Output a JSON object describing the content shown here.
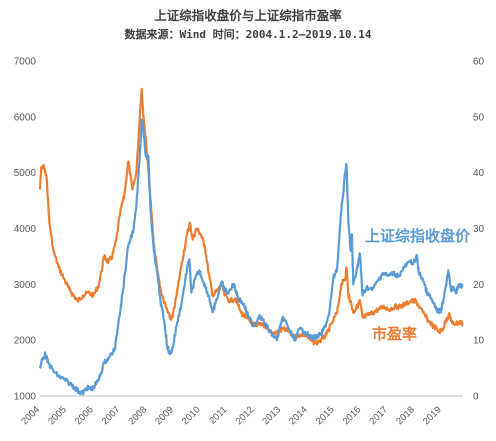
{
  "chart_data": {
    "type": "line",
    "title": "上证综指收盘价与上证综指市盈率",
    "subtitle": "数据来源：Wind 时间：2004.1.2—2019.10.14",
    "x_range": [
      2004,
      2019.8
    ],
    "x_ticks": [
      "2004",
      "2005",
      "2006",
      "2007",
      "2008",
      "2009",
      "2010",
      "2011",
      "2012",
      "2013",
      "2014",
      "2015",
      "2016",
      "2017",
      "2018",
      "2019"
    ],
    "y_left_range": [
      1000,
      7000
    ],
    "y_left_ticks": [
      "1000",
      "2000",
      "3000",
      "4000",
      "5000",
      "6000",
      "7000"
    ],
    "y_right_range": [
      0,
      60
    ],
    "y_right_ticks": [
      "0",
      "10",
      "20",
      "30",
      "40",
      "50",
      "60"
    ],
    "grid": false,
    "series": [
      {
        "name": "上证综指收盘价",
        "axis": "left",
        "color": "#5b9bd5",
        "points": [
          [
            2004.0,
            1500
          ],
          [
            2004.08,
            1650
          ],
          [
            2004.2,
            1750
          ],
          [
            2004.3,
            1600
          ],
          [
            2004.5,
            1450
          ],
          [
            2004.7,
            1350
          ],
          [
            2004.9,
            1300
          ],
          [
            2005.1,
            1230
          ],
          [
            2005.3,
            1150
          ],
          [
            2005.45,
            1080
          ],
          [
            2005.6,
            1050
          ],
          [
            2005.75,
            1150
          ],
          [
            2005.9,
            1120
          ],
          [
            2006.0,
            1150
          ],
          [
            2006.2,
            1300
          ],
          [
            2006.4,
            1600
          ],
          [
            2006.6,
            1700
          ],
          [
            2006.8,
            1850
          ],
          [
            2006.95,
            2400
          ],
          [
            2007.1,
            2900
          ],
          [
            2007.3,
            3700
          ],
          [
            2007.5,
            4000
          ],
          [
            2007.6,
            4400
          ],
          [
            2007.75,
            5500
          ],
          [
            2007.8,
            5950
          ],
          [
            2007.85,
            5800
          ],
          [
            2007.95,
            5300
          ],
          [
            2008.05,
            5300
          ],
          [
            2008.12,
            4400
          ],
          [
            2008.25,
            3600
          ],
          [
            2008.35,
            3300
          ],
          [
            2008.5,
            2700
          ],
          [
            2008.65,
            2300
          ],
          [
            2008.75,
            1900
          ],
          [
            2008.85,
            1750
          ],
          [
            2008.95,
            1850
          ],
          [
            2009.1,
            2250
          ],
          [
            2009.3,
            2700
          ],
          [
            2009.5,
            3300
          ],
          [
            2009.58,
            3450
          ],
          [
            2009.65,
            2850
          ],
          [
            2009.8,
            3100
          ],
          [
            2009.95,
            3250
          ],
          [
            2010.1,
            3050
          ],
          [
            2010.3,
            2800
          ],
          [
            2010.45,
            2500
          ],
          [
            2010.55,
            2650
          ],
          [
            2010.8,
            3050
          ],
          [
            2010.85,
            2950
          ],
          [
            2011.0,
            2850
          ],
          [
            2011.25,
            3000
          ],
          [
            2011.4,
            2750
          ],
          [
            2011.6,
            2650
          ],
          [
            2011.8,
            2400
          ],
          [
            2012.0,
            2250
          ],
          [
            2012.2,
            2450
          ],
          [
            2012.4,
            2300
          ],
          [
            2012.6,
            2150
          ],
          [
            2012.85,
            2000
          ],
          [
            2013.0,
            2300
          ],
          [
            2013.1,
            2400
          ],
          [
            2013.3,
            2200
          ],
          [
            2013.5,
            2000
          ],
          [
            2013.7,
            2200
          ],
          [
            2013.9,
            2150
          ],
          [
            2014.1,
            2050
          ],
          [
            2014.3,
            2050
          ],
          [
            2014.5,
            2100
          ],
          [
            2014.65,
            2250
          ],
          [
            2014.8,
            2450
          ],
          [
            2014.95,
            3100
          ],
          [
            2015.1,
            3300
          ],
          [
            2015.25,
            4300
          ],
          [
            2015.4,
            5000
          ],
          [
            2015.45,
            5150
          ],
          [
            2015.52,
            4100
          ],
          [
            2015.6,
            3600
          ],
          [
            2015.65,
            3900
          ],
          [
            2015.7,
            3000
          ],
          [
            2015.85,
            3300
          ],
          [
            2015.95,
            3550
          ],
          [
            2016.05,
            2800
          ],
          [
            2016.2,
            2950
          ],
          [
            2016.4,
            2900
          ],
          [
            2016.6,
            3050
          ],
          [
            2016.8,
            3200
          ],
          [
            2017.0,
            3150
          ],
          [
            2017.2,
            3200
          ],
          [
            2017.4,
            3150
          ],
          [
            2017.6,
            3300
          ],
          [
            2017.8,
            3400
          ],
          [
            2018.0,
            3400
          ],
          [
            2018.08,
            3500
          ],
          [
            2018.15,
            3200
          ],
          [
            2018.3,
            3100
          ],
          [
            2018.45,
            2850
          ],
          [
            2018.6,
            2750
          ],
          [
            2018.75,
            2600
          ],
          [
            2018.9,
            2500
          ],
          [
            2019.0,
            2550
          ],
          [
            2019.15,
            2950
          ],
          [
            2019.25,
            3250
          ],
          [
            2019.35,
            2900
          ],
          [
            2019.45,
            2950
          ],
          [
            2019.55,
            2850
          ],
          [
            2019.65,
            3000
          ],
          [
            2019.78,
            2950
          ]
        ]
      },
      {
        "name": "市盈率",
        "axis": "right",
        "color": "#ed7d31",
        "points": [
          [
            2004.0,
            37
          ],
          [
            2004.05,
            41
          ],
          [
            2004.15,
            41
          ],
          [
            2004.25,
            39
          ],
          [
            2004.35,
            31
          ],
          [
            2004.5,
            26
          ],
          [
            2004.7,
            23
          ],
          [
            2004.9,
            21
          ],
          [
            2005.1,
            19
          ],
          [
            2005.25,
            18
          ],
          [
            2005.4,
            17
          ],
          [
            2005.6,
            18
          ],
          [
            2005.8,
            18.5
          ],
          [
            2006.0,
            18
          ],
          [
            2006.2,
            20
          ],
          [
            2006.4,
            25
          ],
          [
            2006.55,
            24
          ],
          [
            2006.7,
            25
          ],
          [
            2006.85,
            28
          ],
          [
            2007.0,
            33
          ],
          [
            2007.15,
            36
          ],
          [
            2007.3,
            42
          ],
          [
            2007.45,
            37
          ],
          [
            2007.6,
            40
          ],
          [
            2007.75,
            52
          ],
          [
            2007.8,
            55
          ],
          [
            2007.85,
            51
          ],
          [
            2007.95,
            46
          ],
          [
            2008.1,
            37
          ],
          [
            2008.25,
            27
          ],
          [
            2008.4,
            22
          ],
          [
            2008.55,
            18
          ],
          [
            2008.7,
            16
          ],
          [
            2008.85,
            14
          ],
          [
            2008.95,
            14
          ],
          [
            2009.1,
            18
          ],
          [
            2009.3,
            24
          ],
          [
            2009.5,
            29
          ],
          [
            2009.6,
            31
          ],
          [
            2009.7,
            28
          ],
          [
            2009.85,
            30
          ],
          [
            2010.0,
            29
          ],
          [
            2010.15,
            27
          ],
          [
            2010.3,
            22
          ],
          [
            2010.45,
            18
          ],
          [
            2010.65,
            19
          ],
          [
            2010.8,
            20
          ],
          [
            2010.9,
            18
          ],
          [
            2011.1,
            17
          ],
          [
            2011.3,
            17.5
          ],
          [
            2011.5,
            15
          ],
          [
            2011.7,
            14
          ],
          [
            2011.9,
            13
          ],
          [
            2012.1,
            12.5
          ],
          [
            2012.3,
            13
          ],
          [
            2012.5,
            12
          ],
          [
            2012.7,
            11
          ],
          [
            2012.9,
            11.5
          ],
          [
            2013.1,
            12
          ],
          [
            2013.3,
            11.5
          ],
          [
            2013.5,
            10.5
          ],
          [
            2013.7,
            11
          ],
          [
            2013.9,
            11
          ],
          [
            2014.1,
            10
          ],
          [
            2014.3,
            9.5
          ],
          [
            2014.5,
            10
          ],
          [
            2014.7,
            11
          ],
          [
            2014.9,
            13
          ],
          [
            2015.1,
            15
          ],
          [
            2015.25,
            20
          ],
          [
            2015.4,
            21
          ],
          [
            2015.45,
            23
          ],
          [
            2015.52,
            18
          ],
          [
            2015.6,
            17
          ],
          [
            2015.7,
            15
          ],
          [
            2015.85,
            16
          ],
          [
            2015.95,
            17
          ],
          [
            2016.05,
            14
          ],
          [
            2016.25,
            14.5
          ],
          [
            2016.45,
            15
          ],
          [
            2016.65,
            15.5
          ],
          [
            2016.85,
            16
          ],
          [
            2017.05,
            15.5
          ],
          [
            2017.25,
            16
          ],
          [
            2017.45,
            16
          ],
          [
            2017.65,
            16.5
          ],
          [
            2017.85,
            17
          ],
          [
            2018.0,
            17
          ],
          [
            2018.1,
            16.5
          ],
          [
            2018.3,
            15
          ],
          [
            2018.5,
            13.5
          ],
          [
            2018.7,
            12.5
          ],
          [
            2018.9,
            11.5
          ],
          [
            2019.05,
            12
          ],
          [
            2019.2,
            14
          ],
          [
            2019.3,
            14.5
          ],
          [
            2019.4,
            13
          ],
          [
            2019.55,
            13
          ],
          [
            2019.7,
            13.2
          ],
          [
            2019.78,
            13
          ]
        ]
      }
    ],
    "annotations": [
      {
        "text": "上证综指收盘价",
        "series": "上证综指收盘价"
      },
      {
        "text": "市盈率",
        "series": "市盈率"
      }
    ]
  }
}
